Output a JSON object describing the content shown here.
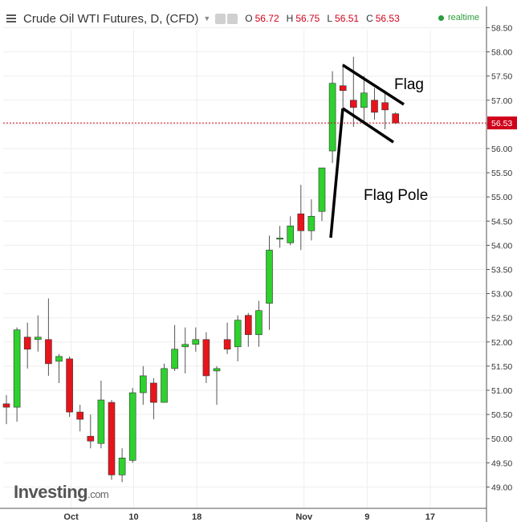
{
  "header": {
    "title": "Crude Oil WTI Futures, D, (CFD)",
    "open_label": "O",
    "open": "56.72",
    "high_label": "H",
    "high": "56.75",
    "low_label": "L",
    "low": "56.51",
    "close_label": "C",
    "close": "56.53",
    "realtime": "realtime",
    "icons": [
      "menu-icon",
      "caret-down-icon",
      "eye-icon",
      "settings-icon"
    ]
  },
  "logo": {
    "text": "Investing",
    "suffix": ".com"
  },
  "colors": {
    "up": "#2ed12e",
    "down": "#e8141b",
    "wick": "#555555",
    "price_line": "#d0021b",
    "annotation": "#000000"
  },
  "annotations": {
    "flag": "Flag",
    "flag_pole": "Flag Pole"
  },
  "chart_data": {
    "type": "candlestick",
    "title": "Crude Oil WTI Futures, D, (CFD)",
    "ylim": [
      48.8,
      58.75
    ],
    "yticks": [
      49.0,
      49.5,
      50.0,
      50.5,
      51.0,
      51.5,
      52.0,
      52.5,
      53.0,
      53.5,
      54.0,
      54.5,
      55.0,
      55.5,
      56.0,
      56.5,
      57.0,
      57.5,
      58.0,
      58.5
    ],
    "ytick_labels": [
      "49.00",
      "49.50",
      "50.00",
      "50.50",
      "51.00",
      "51.50",
      "52.00",
      "52.50",
      "53.00",
      "53.50",
      "54.00",
      "54.50",
      "55.00",
      "55.50",
      "56.00",
      "56.50",
      "57.00",
      "57.50",
      "58.00",
      "58.50"
    ],
    "last_price": 56.53,
    "last_price_label": "56.53",
    "xlim": [
      -0.5,
      40
    ],
    "xticks": [
      {
        "pos": 6.15,
        "label": "Oct"
      },
      {
        "pos": 12.1,
        "label": "10"
      },
      {
        "pos": 18.1,
        "label": "18"
      },
      {
        "pos": 28.3,
        "label": "Nov"
      },
      {
        "pos": 34.3,
        "label": "9"
      },
      {
        "pos": 40.3,
        "label": "17"
      }
    ],
    "candles": [
      {
        "o": 50.72,
        "h": 50.9,
        "l": 50.3,
        "c": 50.65
      },
      {
        "o": 50.65,
        "h": 52.3,
        "l": 50.35,
        "c": 52.25
      },
      {
        "o": 52.1,
        "h": 52.4,
        "l": 51.45,
        "c": 51.85
      },
      {
        "o": 52.05,
        "h": 52.55,
        "l": 51.8,
        "c": 52.1
      },
      {
        "o": 52.05,
        "h": 52.9,
        "l": 51.3,
        "c": 51.55
      },
      {
        "o": 51.6,
        "h": 51.75,
        "l": 51.15,
        "c": 51.7
      },
      {
        "o": 51.65,
        "h": 51.7,
        "l": 50.45,
        "c": 50.55
      },
      {
        "o": 50.55,
        "h": 50.7,
        "l": 50.15,
        "c": 50.4
      },
      {
        "o": 50.05,
        "h": 50.5,
        "l": 49.8,
        "c": 49.95
      },
      {
        "o": 49.9,
        "h": 51.2,
        "l": 49.8,
        "c": 50.8
      },
      {
        "o": 50.75,
        "h": 50.8,
        "l": 49.15,
        "c": 49.25
      },
      {
        "o": 49.25,
        "h": 49.8,
        "l": 49.1,
        "c": 49.6
      },
      {
        "o": 49.55,
        "h": 51.05,
        "l": 49.5,
        "c": 50.95
      },
      {
        "o": 50.95,
        "h": 51.5,
        "l": 50.7,
        "c": 51.3
      },
      {
        "o": 51.15,
        "h": 51.25,
        "l": 50.4,
        "c": 50.75
      },
      {
        "o": 50.75,
        "h": 51.55,
        "l": 50.75,
        "c": 51.45
      },
      {
        "o": 51.45,
        "h": 52.35,
        "l": 51.4,
        "c": 51.85
      },
      {
        "o": 51.9,
        "h": 52.3,
        "l": 51.35,
        "c": 51.95
      },
      {
        "o": 51.95,
        "h": 52.3,
        "l": 51.8,
        "c": 52.05
      },
      {
        "o": 52.05,
        "h": 52.2,
        "l": 51.15,
        "c": 51.3
      },
      {
        "o": 51.4,
        "h": 51.5,
        "l": 50.7,
        "c": 51.45
      },
      {
        "o": 52.05,
        "h": 52.4,
        "l": 51.75,
        "c": 51.85
      },
      {
        "o": 51.9,
        "h": 52.55,
        "l": 51.6,
        "c": 52.45
      },
      {
        "o": 52.55,
        "h": 52.6,
        "l": 51.9,
        "c": 52.15
      },
      {
        "o": 52.15,
        "h": 52.85,
        "l": 51.9,
        "c": 52.65
      },
      {
        "o": 52.8,
        "h": 54.2,
        "l": 52.25,
        "c": 53.9
      },
      {
        "o": 54.15,
        "h": 54.4,
        "l": 53.95,
        "c": 54.15
      },
      {
        "o": 54.05,
        "h": 54.6,
        "l": 54.0,
        "c": 54.4
      },
      {
        "o": 54.65,
        "h": 55.25,
        "l": 53.9,
        "c": 54.3
      },
      {
        "o": 54.3,
        "h": 54.95,
        "l": 54.1,
        "c": 54.6
      },
      {
        "o": 54.7,
        "h": 55.6,
        "l": 54.5,
        "c": 55.6
      },
      {
        "o": 55.95,
        "h": 57.6,
        "l": 55.7,
        "c": 57.35
      },
      {
        "o": 57.3,
        "h": 57.75,
        "l": 56.65,
        "c": 57.2
      },
      {
        "o": 57.0,
        "h": 57.9,
        "l": 56.45,
        "c": 56.85
      },
      {
        "o": 56.85,
        "h": 57.5,
        "l": 56.55,
        "c": 57.15
      },
      {
        "o": 57.0,
        "h": 57.25,
        "l": 56.6,
        "c": 56.75
      },
      {
        "o": 56.95,
        "h": 57.2,
        "l": 56.4,
        "c": 56.8
      },
      {
        "o": 56.72,
        "h": 56.75,
        "l": 56.51,
        "c": 56.53
      }
    ]
  }
}
